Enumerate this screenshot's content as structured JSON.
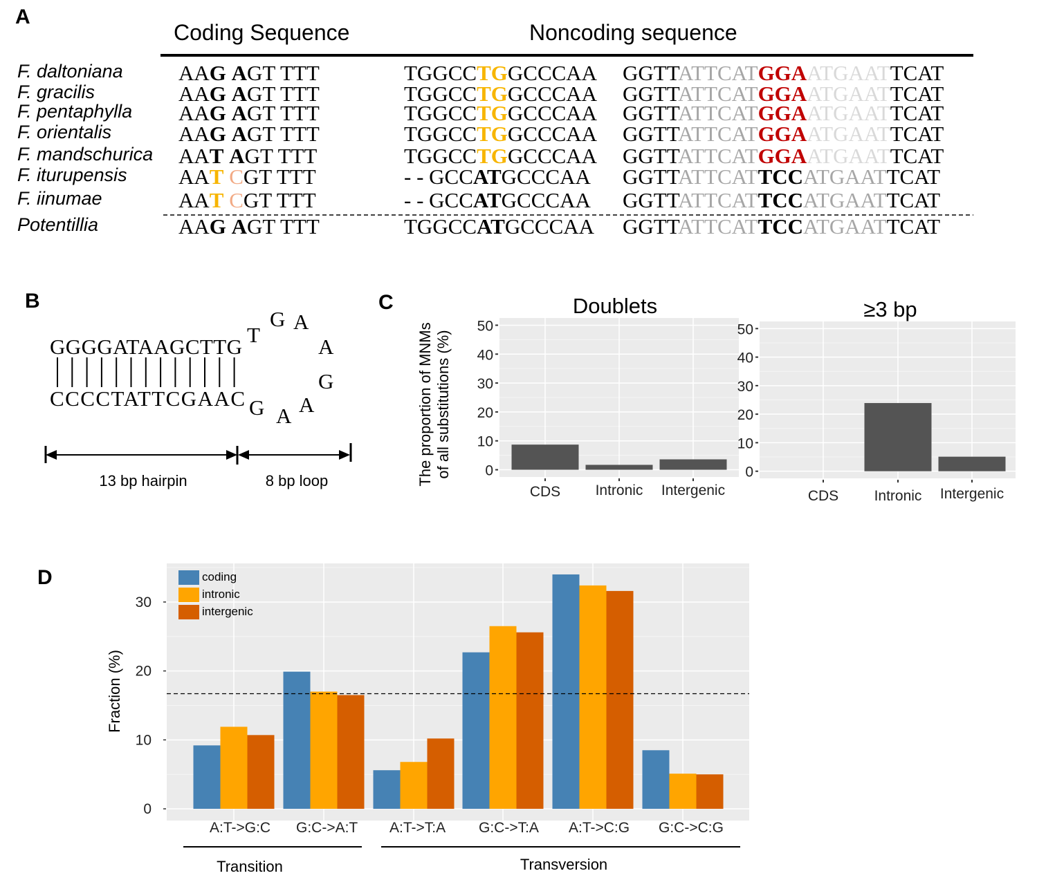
{
  "panel_labels": {
    "a": "A",
    "b": "B",
    "c": "C",
    "d": "D"
  },
  "panel_a": {
    "header_coding": "Coding Sequence",
    "header_noncoding": "Noncoding sequence",
    "colors": {
      "yellow": "#F7B500",
      "peach": "#F2AA85",
      "red": "#C00000",
      "gray": "#A6A6A6",
      "light": "#D9D9D9"
    },
    "rows": [
      {
        "species": "F. daltoniana",
        "coding": [
          {
            "t": "AA",
            "s": "n"
          },
          {
            "t": "G",
            "s": "b"
          },
          {
            "t": " ",
            "s": "n"
          },
          {
            "t": "A",
            "s": "b"
          },
          {
            "t": "GT TTT",
            "s": "n"
          }
        ],
        "noncoding1": [
          {
            "t": "TGGCC",
            "s": "n"
          },
          {
            "t": "TG",
            "s": "y"
          },
          {
            "t": "GCCCAA",
            "s": "n"
          }
        ],
        "noncoding2": [
          {
            "t": "GGTT",
            "s": "n"
          },
          {
            "t": "ATTCAT",
            "s": "g"
          },
          {
            "t": "GGA",
            "s": "r"
          },
          {
            "t": "ATGAAT",
            "s": "l"
          },
          {
            "t": "TCAT",
            "s": "n"
          }
        ]
      },
      {
        "species": "F. gracilis",
        "coding": [
          {
            "t": "AA",
            "s": "n"
          },
          {
            "t": "G",
            "s": "b"
          },
          {
            "t": " ",
            "s": "n"
          },
          {
            "t": "A",
            "s": "b"
          },
          {
            "t": "GT TTT",
            "s": "n"
          }
        ],
        "noncoding1": [
          {
            "t": "TGGCC",
            "s": "n"
          },
          {
            "t": "TG",
            "s": "y"
          },
          {
            "t": "GCCCAA",
            "s": "n"
          }
        ],
        "noncoding2": [
          {
            "t": "GGTT",
            "s": "n"
          },
          {
            "t": "ATTCAT",
            "s": "g"
          },
          {
            "t": "GGA",
            "s": "r"
          },
          {
            "t": "ATGAAT",
            "s": "l"
          },
          {
            "t": "TCAT",
            "s": "n"
          }
        ]
      },
      {
        "species": "F. pentaphylla",
        "coding": [
          {
            "t": "AA",
            "s": "n"
          },
          {
            "t": "G",
            "s": "b"
          },
          {
            "t": " ",
            "s": "n"
          },
          {
            "t": "A",
            "s": "b"
          },
          {
            "t": "GT TTT",
            "s": "n"
          }
        ],
        "noncoding1": [
          {
            "t": "TGGCC",
            "s": "n"
          },
          {
            "t": "TG",
            "s": "y"
          },
          {
            "t": "GCCCAA",
            "s": "n"
          }
        ],
        "noncoding2": [
          {
            "t": "GGTT",
            "s": "n"
          },
          {
            "t": "ATTCAT",
            "s": "g"
          },
          {
            "t": "GGA",
            "s": "r"
          },
          {
            "t": "ATGAAT",
            "s": "l"
          },
          {
            "t": "TCAT",
            "s": "n"
          }
        ]
      },
      {
        "species": "F. orientalis",
        "coding": [
          {
            "t": "AA",
            "s": "n"
          },
          {
            "t": "G",
            "s": "b"
          },
          {
            "t": " ",
            "s": "n"
          },
          {
            "t": "A",
            "s": "b"
          },
          {
            "t": "GT TTT",
            "s": "n"
          }
        ],
        "noncoding1": [
          {
            "t": "TGGCC",
            "s": "n"
          },
          {
            "t": "TG",
            "s": "y"
          },
          {
            "t": "GCCCAA",
            "s": "n"
          }
        ],
        "noncoding2": [
          {
            "t": "GGTT",
            "s": "n"
          },
          {
            "t": "ATTCAT",
            "s": "g"
          },
          {
            "t": "GGA",
            "s": "r"
          },
          {
            "t": "ATGAAT",
            "s": "l"
          },
          {
            "t": "TCAT",
            "s": "n"
          }
        ]
      },
      {
        "species": "F. mandschurica",
        "coding": [
          {
            "t": "AA",
            "s": "n"
          },
          {
            "t": "T",
            "s": "b"
          },
          {
            "t": " ",
            "s": "n"
          },
          {
            "t": "A",
            "s": "b"
          },
          {
            "t": "GT TTT",
            "s": "n"
          }
        ],
        "noncoding1": [
          {
            "t": "TGGCC",
            "s": "n"
          },
          {
            "t": "TG",
            "s": "y"
          },
          {
            "t": "GCCCAA",
            "s": "n"
          }
        ],
        "noncoding2": [
          {
            "t": "GGTT",
            "s": "n"
          },
          {
            "t": "ATTCAT",
            "s": "g"
          },
          {
            "t": "GGA",
            "s": "r"
          },
          {
            "t": "ATGAAT",
            "s": "l"
          },
          {
            "t": "TCAT",
            "s": "n"
          }
        ]
      },
      {
        "species": "F. iturupensis",
        "coding": [
          {
            "t": "AA",
            "s": "n"
          },
          {
            "t": "T",
            "s": "y"
          },
          {
            "t": " ",
            "s": "n"
          },
          {
            "t": "C",
            "s": "o"
          },
          {
            "t": "GT TTT",
            "s": "n"
          }
        ],
        "noncoding1": [
          {
            "t": "- - GCC",
            "s": "n"
          },
          {
            "t": "AT",
            "s": "b"
          },
          {
            "t": "GCCCAA",
            "s": "n"
          }
        ],
        "noncoding2": [
          {
            "t": "GGTT",
            "s": "n"
          },
          {
            "t": "ATTCAT",
            "s": "g"
          },
          {
            "t": "TCC",
            "s": "b"
          },
          {
            "t": "ATGAAT",
            "s": "g"
          },
          {
            "t": "TCAT",
            "s": "n"
          }
        ]
      },
      {
        "species": "F. iinumae",
        "coding": [
          {
            "t": "AA",
            "s": "n"
          },
          {
            "t": "T",
            "s": "y"
          },
          {
            "t": " ",
            "s": "n"
          },
          {
            "t": "C",
            "s": "o"
          },
          {
            "t": "GT TTT",
            "s": "n"
          }
        ],
        "noncoding1": [
          {
            "t": "- - GCC",
            "s": "n"
          },
          {
            "t": "AT",
            "s": "b"
          },
          {
            "t": "GCCCAA",
            "s": "n"
          }
        ],
        "noncoding2": [
          {
            "t": "GGTT",
            "s": "n"
          },
          {
            "t": "ATTCAT",
            "s": "g"
          },
          {
            "t": "TCC",
            "s": "b"
          },
          {
            "t": "ATGAAT",
            "s": "g"
          },
          {
            "t": "TCAT",
            "s": "n"
          }
        ]
      },
      {
        "species": "Potentillia",
        "coding": [
          {
            "t": "AA",
            "s": "n"
          },
          {
            "t": "G",
            "s": "b"
          },
          {
            "t": " ",
            "s": "n"
          },
          {
            "t": "A",
            "s": "b"
          },
          {
            "t": "GT TTT",
            "s": "n"
          }
        ],
        "noncoding1": [
          {
            "t": "TGGCC",
            "s": "n"
          },
          {
            "t": "AT",
            "s": "b"
          },
          {
            "t": "GCCCAA",
            "s": "n"
          }
        ],
        "noncoding2": [
          {
            "t": "GGTT",
            "s": "n"
          },
          {
            "t": "ATTCAT",
            "s": "g"
          },
          {
            "t": "TCC",
            "s": "b"
          },
          {
            "t": "ATGAAT",
            "s": "g"
          },
          {
            "t": "TCAT",
            "s": "n"
          }
        ]
      }
    ]
  },
  "panel_b": {
    "top_strand": "GGGGATAAGCTTG",
    "bottom_strand": "CCCCTATTCGAAC",
    "loop": [
      "T",
      "G",
      "A",
      "A",
      "G",
      "A",
      "A",
      "G"
    ],
    "hairpin_label": "13 bp hairpin",
    "loop_label": "8 bp loop"
  },
  "chart_data": [
    {
      "type": "bar",
      "title": "Doublets",
      "ylabel": "The proportion of MNMs of all substitutions (%)",
      "ylabel_lines": [
        "The proportion of MNMs",
        "of all substitutions (%)"
      ],
      "categories": [
        "CDS",
        "Intronic",
        "Intergenic"
      ],
      "values": [
        8.7,
        1.7,
        3.6
      ],
      "yticks": [
        "0",
        "10",
        "20",
        "30",
        "40",
        "50"
      ],
      "ylim": [
        -2.5,
        52.5
      ],
      "grid": true,
      "bar_color": "#545454",
      "panel_bg": "#EBEBEB"
    },
    {
      "type": "bar",
      "title": "≥3 bp",
      "categories": [
        "CDS",
        "Intronic",
        "Intergenic"
      ],
      "values": [
        0,
        23.9,
        5.1
      ],
      "yticks": [
        "0",
        "10",
        "20",
        "30",
        "40",
        "50"
      ],
      "ylim": [
        -2.5,
        52.5
      ],
      "grid": true,
      "bar_color": "#545454",
      "panel_bg": "#EBEBEB"
    },
    {
      "type": "bar",
      "ylabel": "Fraction (%)",
      "categories": [
        "A:T->G:C",
        "G:C->A:T",
        "A:T->T:A",
        "G:C->T:A",
        "A:T->C:G",
        "G:C->C:G"
      ],
      "series": [
        {
          "name": "coding",
          "color": "#4682B4",
          "values": [
            9.2,
            19.9,
            5.6,
            22.7,
            34.0,
            8.5
          ]
        },
        {
          "name": "intronic",
          "color": "#FFA500",
          "values": [
            11.9,
            17.0,
            6.8,
            26.5,
            32.4,
            5.1
          ]
        },
        {
          "name": "intergenic",
          "color": "#D55E00",
          "values": [
            10.7,
            16.5,
            10.2,
            25.6,
            31.6,
            5.0
          ]
        }
      ],
      "reference_line": 16.7,
      "yticks": [
        "0",
        "10",
        "20",
        "30"
      ],
      "ylim": [
        -1.7,
        35.6
      ],
      "grid": true,
      "legend": "top-left",
      "groups": [
        {
          "label": "Transition",
          "categories": [
            "A:T->G:C",
            "G:C->A:T"
          ]
        },
        {
          "label": "Transversion",
          "categories": [
            "A:T->T:A",
            "G:C->T:A",
            "A:T->C:G",
            "G:C->C:G"
          ]
        }
      ],
      "panel_bg": "#EBEBEB"
    }
  ]
}
